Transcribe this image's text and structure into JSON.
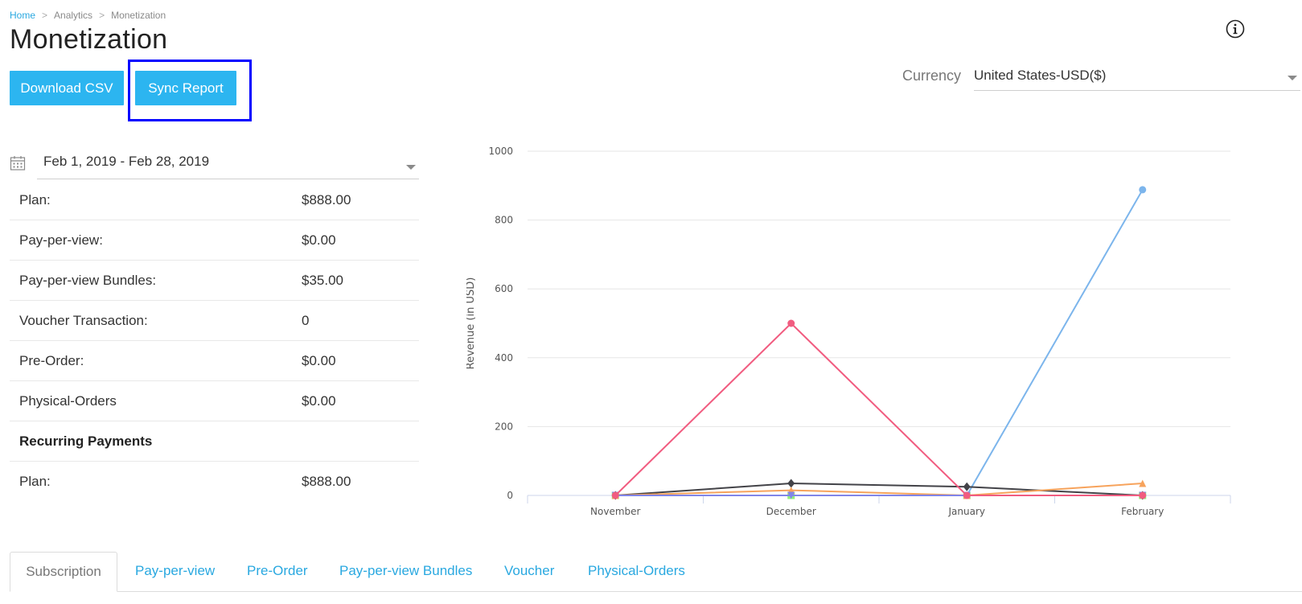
{
  "breadcrumb": {
    "items": [
      "Home",
      "Analytics",
      "Monetization"
    ],
    "separator": ">"
  },
  "page": {
    "title": "Monetization"
  },
  "toolbar": {
    "download_label": "Download CSV",
    "sync_label": "Sync Report"
  },
  "currency": {
    "label": "Currency",
    "value": "United States-USD($)"
  },
  "date_range": {
    "value": "Feb 1, 2019 - Feb 28, 2019"
  },
  "summary": {
    "rows": [
      {
        "label": "Plan:",
        "value": "$888.00"
      },
      {
        "label": "Pay-per-view:",
        "value": "$0.00"
      },
      {
        "label": "Pay-per-view Bundles:",
        "value": "$35.00"
      },
      {
        "label": "Voucher Transaction:",
        "value": "0"
      },
      {
        "label": "Pre-Order:",
        "value": "$0.00"
      },
      {
        "label": "Physical-Orders",
        "value": "$0.00"
      }
    ],
    "recurring_title": "Recurring Payments",
    "recurring_rows": [
      {
        "label": "Plan:",
        "value": "$888.00"
      }
    ]
  },
  "chart_data": {
    "type": "line",
    "categories": [
      "November",
      "December",
      "January",
      "February"
    ],
    "ylabel": "Revenue (in USD)",
    "ylim": [
      0,
      1000
    ],
    "yticks": [
      0,
      200,
      400,
      600,
      800,
      1000
    ],
    "grid": true,
    "series": [
      {
        "color": "#7cb5ec",
        "marker": "circle",
        "values": [
          0,
          0,
          0,
          888
        ]
      },
      {
        "color": "#434348",
        "marker": "diamond",
        "values": [
          0,
          35,
          25,
          0
        ]
      },
      {
        "color": "#90ed7d",
        "marker": "square",
        "values": [
          0,
          0,
          0,
          0
        ]
      },
      {
        "color": "#f7a35c",
        "marker": "triangle",
        "values": [
          0,
          15,
          0,
          35
        ]
      },
      {
        "color": "#8085e9",
        "marker": "triangle-down",
        "values": [
          0,
          0,
          0,
          0
        ]
      },
      {
        "color": "#f15c80",
        "marker": "circle",
        "values": [
          0,
          500,
          0,
          0
        ]
      }
    ]
  },
  "tabs": [
    {
      "label": "Subscription",
      "active": true
    },
    {
      "label": "Pay-per-view",
      "active": false
    },
    {
      "label": "Pre-Order",
      "active": false
    },
    {
      "label": "Pay-per-view Bundles",
      "active": false
    },
    {
      "label": "Voucher",
      "active": false
    },
    {
      "label": "Physical-Orders",
      "active": false
    }
  ]
}
